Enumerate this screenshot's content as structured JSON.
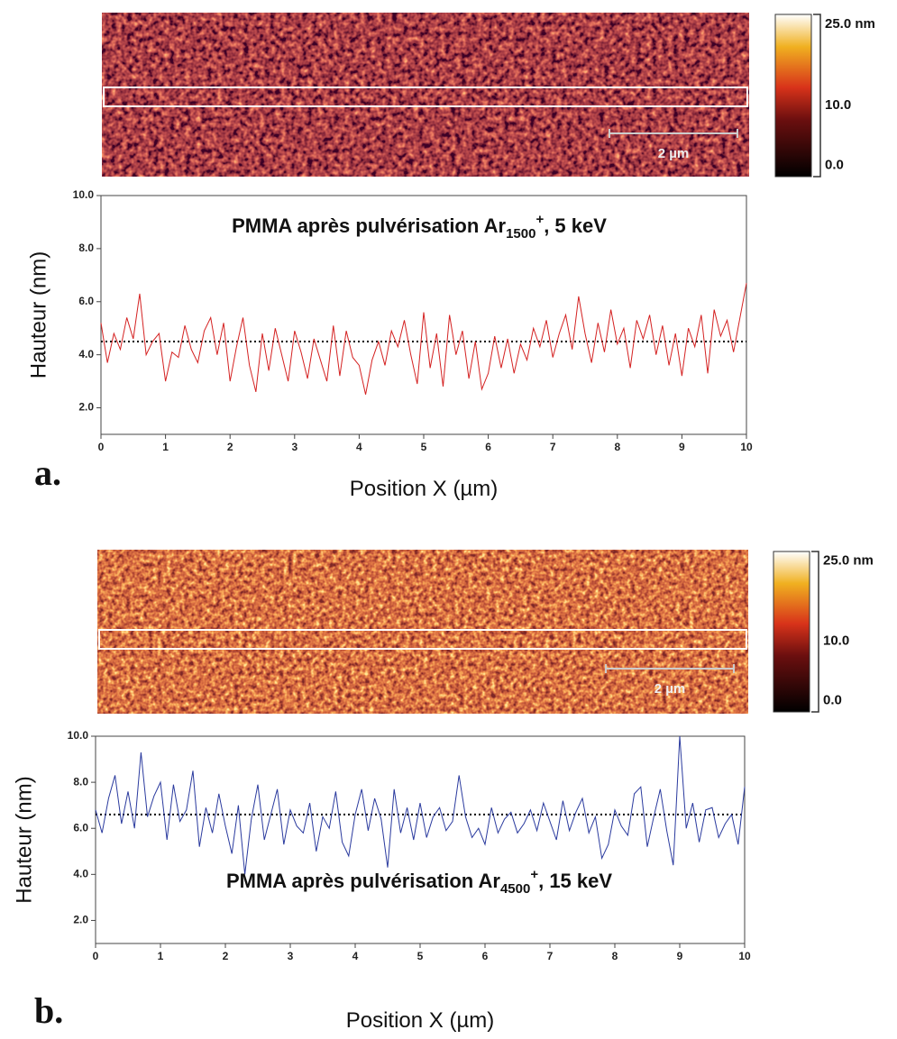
{
  "chart_data": [
    {
      "type": "line",
      "panel_label": "a.",
      "title": [
        "PMMA après pulvérisation Ar",
        "1500",
        "+",
        ", 5 keV"
      ],
      "x_label": "Position X (µm)",
      "y_label": "Hauteur (nm)",
      "afm_image": {
        "colorbar_labels": [
          "25.0 nm",
          "10.0",
          "0.0"
        ],
        "scale_bar": "2 µm"
      },
      "x": [
        0,
        0.1,
        0.2,
        0.3,
        0.4,
        0.5,
        0.6,
        0.7,
        0.8,
        0.9,
        1,
        1.1,
        1.2,
        1.3,
        1.4,
        1.5,
        1.6,
        1.7,
        1.8,
        1.9,
        2,
        2.1,
        2.2,
        2.3,
        2.4,
        2.5,
        2.6,
        2.7,
        2.8,
        2.9,
        3,
        3.1,
        3.2,
        3.3,
        3.4,
        3.5,
        3.6,
        3.7,
        3.8,
        3.9,
        4,
        4.1,
        4.2,
        4.3,
        4.4,
        4.5,
        4.6,
        4.7,
        4.8,
        4.9,
        5,
        5.1,
        5.2,
        5.3,
        5.4,
        5.5,
        5.6,
        5.7,
        5.8,
        5.9,
        6,
        6.1,
        6.2,
        6.3,
        6.4,
        6.5,
        6.6,
        6.7,
        6.8,
        6.9,
        7,
        7.1,
        7.2,
        7.3,
        7.4,
        7.5,
        7.6,
        7.7,
        7.8,
        7.9,
        8,
        8.1,
        8.2,
        8.3,
        8.4,
        8.5,
        8.6,
        8.7,
        8.8,
        8.9,
        9,
        9.1,
        9.2,
        9.3,
        9.4,
        9.5,
        9.6,
        9.7,
        9.8,
        9.9,
        10
      ],
      "series": [
        {
          "color": "#d42121",
          "values": [
            5.2,
            3.7,
            4.8,
            4.2,
            5.4,
            4.6,
            6.3,
            4.0,
            4.5,
            4.8,
            3.0,
            4.1,
            3.9,
            5.1,
            4.2,
            3.7,
            4.9,
            5.4,
            4.0,
            5.2,
            3.0,
            4.3,
            5.4,
            3.6,
            2.6,
            4.8,
            3.4,
            5.0,
            4.0,
            3.0,
            4.9,
            4.1,
            3.1,
            4.6,
            3.8,
            3.0,
            5.1,
            3.2,
            4.9,
            3.9,
            3.6,
            2.5,
            3.8,
            4.5,
            3.6,
            4.9,
            4.3,
            5.3,
            4.0,
            2.9,
            5.6,
            3.5,
            4.8,
            2.8,
            5.5,
            4.0,
            4.9,
            3.1,
            4.5,
            2.7,
            3.3,
            4.7,
            3.5,
            4.6,
            3.3,
            4.4,
            3.8,
            5.0,
            4.3,
            5.3,
            3.9,
            4.8,
            5.5,
            4.2,
            6.2,
            4.8,
            3.7,
            5.2,
            4.1,
            5.7,
            4.4,
            5.0,
            3.5,
            5.3,
            4.6,
            5.5,
            4.0,
            5.1,
            3.6,
            4.8,
            3.2,
            5.0,
            4.3,
            5.5,
            3.3,
            5.7,
            4.7,
            5.3,
            4.1,
            5.4,
            6.7
          ]
        }
      ],
      "reference_line": 4.5,
      "xlim": [
        0,
        10
      ],
      "ylim": [
        1,
        10
      ],
      "xticks": [
        0,
        1,
        2,
        3,
        4,
        5,
        6,
        7,
        8,
        9,
        10
      ],
      "yticks": [
        {
          "value": 2,
          "label": "2.0"
        },
        {
          "value": 4,
          "label": "4.0"
        },
        {
          "value": 6,
          "label": "6.0"
        },
        {
          "value": 8,
          "label": "8.0"
        },
        {
          "value": 10,
          "label": "10.0"
        }
      ]
    },
    {
      "type": "line",
      "panel_label": "b.",
      "title": [
        "PMMA après pulvérisation Ar",
        "4500",
        "+",
        ", 15 keV"
      ],
      "x_label": "Position X (µm)",
      "y_label": "Hauteur (nm)",
      "afm_image": {
        "colorbar_labels": [
          "25.0 nm",
          "10.0",
          "0.0"
        ],
        "scale_bar": "2 µm"
      },
      "x": [
        0,
        0.1,
        0.2,
        0.3,
        0.4,
        0.5,
        0.6,
        0.7,
        0.8,
        0.9,
        1,
        1.1,
        1.2,
        1.3,
        1.4,
        1.5,
        1.6,
        1.7,
        1.8,
        1.9,
        2,
        2.1,
        2.2,
        2.3,
        2.4,
        2.5,
        2.6,
        2.7,
        2.8,
        2.9,
        3,
        3.1,
        3.2,
        3.3,
        3.4,
        3.5,
        3.6,
        3.7,
        3.8,
        3.9,
        4,
        4.1,
        4.2,
        4.3,
        4.4,
        4.5,
        4.6,
        4.7,
        4.8,
        4.9,
        5,
        5.1,
        5.2,
        5.3,
        5.4,
        5.5,
        5.6,
        5.7,
        5.8,
        5.9,
        6,
        6.1,
        6.2,
        6.3,
        6.4,
        6.5,
        6.6,
        6.7,
        6.8,
        6.9,
        7,
        7.1,
        7.2,
        7.3,
        7.4,
        7.5,
        7.6,
        7.7,
        7.8,
        7.9,
        8,
        8.1,
        8.2,
        8.3,
        8.4,
        8.5,
        8.6,
        8.7,
        8.8,
        8.9,
        9,
        9.1,
        9.2,
        9.3,
        9.4,
        9.5,
        9.6,
        9.7,
        9.8,
        9.9,
        10
      ],
      "series": [
        {
          "color": "#2a3a9e",
          "values": [
            6.8,
            5.8,
            7.3,
            8.3,
            6.2,
            7.6,
            6.0,
            9.3,
            6.5,
            7.4,
            8.0,
            5.5,
            7.9,
            6.3,
            6.8,
            8.5,
            5.2,
            6.9,
            5.8,
            7.5,
            6.1,
            4.9,
            7.0,
            4.0,
            6.4,
            7.9,
            5.5,
            6.6,
            7.7,
            5.3,
            6.8,
            6.1,
            5.8,
            7.1,
            5.0,
            6.5,
            6.0,
            7.6,
            5.4,
            4.8,
            6.6,
            7.7,
            5.9,
            7.3,
            6.4,
            4.3,
            7.7,
            5.8,
            6.9,
            5.5,
            7.1,
            5.6,
            6.5,
            6.9,
            5.9,
            6.3,
            8.3,
            6.5,
            5.6,
            6.0,
            5.3,
            6.9,
            5.8,
            6.4,
            6.7,
            5.8,
            6.2,
            6.8,
            5.9,
            7.1,
            6.3,
            5.5,
            7.2,
            5.9,
            6.7,
            7.3,
            5.8,
            6.5,
            4.7,
            5.3,
            6.8,
            6.1,
            5.7,
            7.5,
            7.8,
            5.2,
            6.5,
            7.7,
            5.9,
            4.4,
            10.0,
            6.0,
            7.1,
            5.4,
            6.8,
            6.9,
            5.6,
            6.2,
            6.6,
            5.3,
            7.8
          ]
        }
      ],
      "reference_line": 6.6,
      "xlim": [
        0,
        10
      ],
      "ylim": [
        1,
        10
      ],
      "xticks": [
        0,
        1,
        2,
        3,
        4,
        5,
        6,
        7,
        8,
        9,
        10
      ],
      "yticks": [
        {
          "value": 2,
          "label": "2.0"
        },
        {
          "value": 4,
          "label": "4.0"
        },
        {
          "value": 6,
          "label": "6.0"
        },
        {
          "value": 8,
          "label": "8.0"
        },
        {
          "value": 10,
          "label": "10.0"
        }
      ]
    }
  ]
}
